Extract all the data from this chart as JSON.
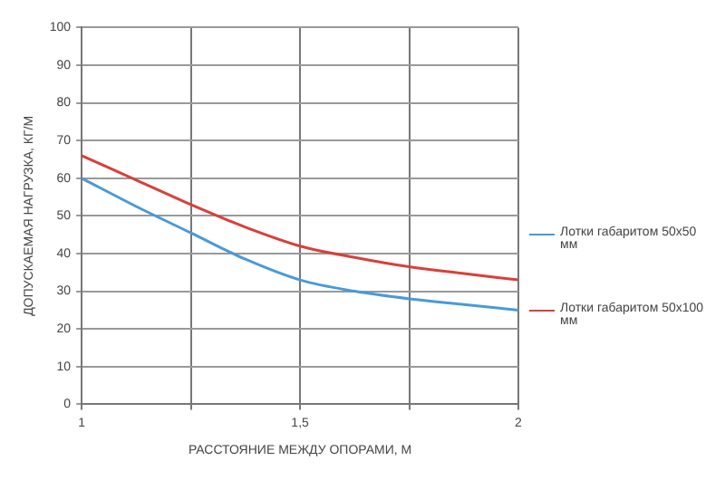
{
  "chart_data": {
    "type": "line",
    "xlabel": "РАССТОЯНИЕ МЕЖДУ ОПОРАМИ, М",
    "ylabel": "ДОПУСКАЕМАЯ НАГРУЗКА, КГ/М",
    "x": [
      1,
      1.125,
      1.25,
      1.375,
      1.5,
      1.625,
      1.75,
      1.875,
      2
    ],
    "series": [
      {
        "name": "Лотки габаритом 50х50 мм",
        "color": "#4a9ad8",
        "values": [
          60,
          52.5,
          45.5,
          38.5,
          33,
          30,
          28,
          26.5,
          25
        ]
      },
      {
        "name": "Лотки габаритом 50х100 мм",
        "color": "#d9403a",
        "values": [
          66,
          59.5,
          53,
          47,
          42,
          39,
          36.5,
          34.7,
          33
        ]
      }
    ],
    "xlim": [
      1,
      2
    ],
    "xticks": [
      1,
      {
        "value": 1.25,
        "label": null
      },
      {
        "value": 1.5,
        "label": "1,5"
      },
      {
        "value": 1.75,
        "label": null
      },
      2
    ],
    "ylim": [
      0,
      100
    ],
    "yticks": [
      0,
      10,
      20,
      30,
      40,
      50,
      60,
      70,
      80,
      90,
      100
    ],
    "grid": true,
    "legend": "right",
    "marker": "none",
    "line_style": "solid"
  }
}
